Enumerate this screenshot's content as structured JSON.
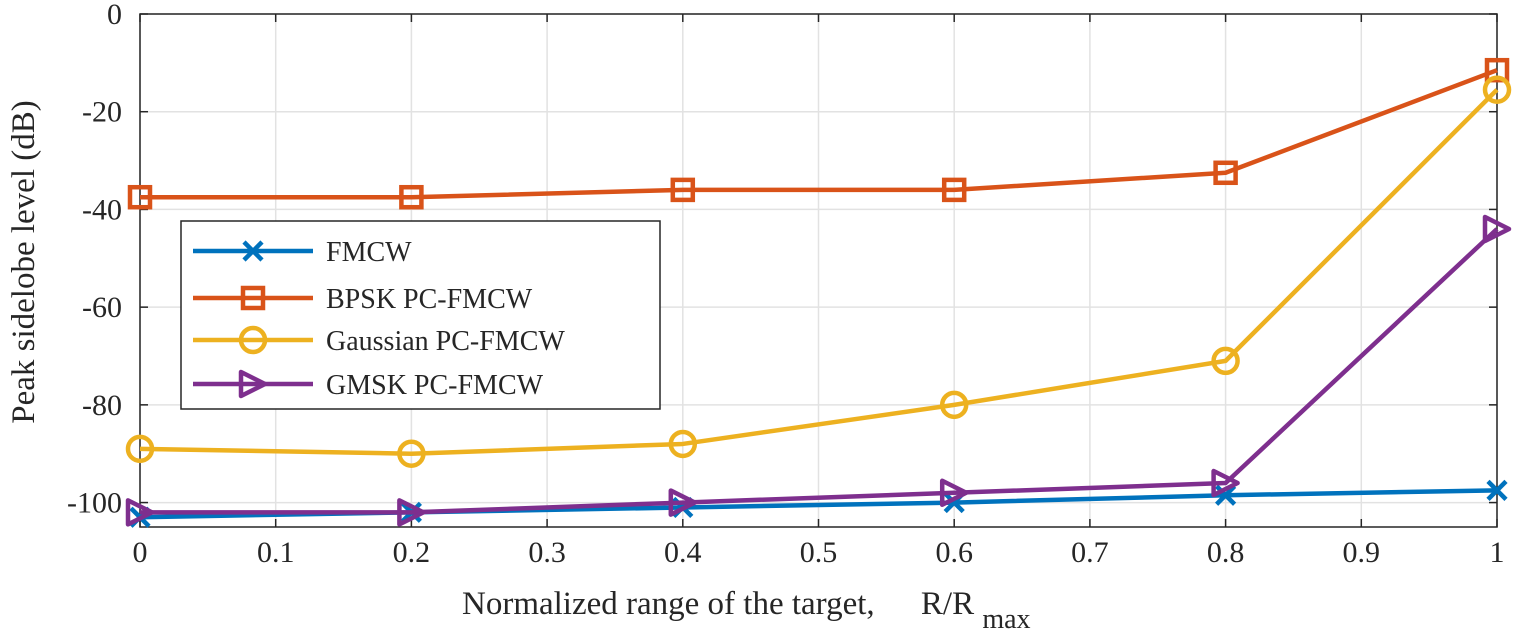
{
  "chart_data": {
    "type": "line",
    "title": "",
    "xlabel": "Normalized range of the target,",
    "xlabel_math": {
      "base": "R/R",
      "subscript": "max"
    },
    "ylabel": "Peak sidelobe level (dB)",
    "xlim": [
      0,
      1
    ],
    "ylim": [
      -105,
      0
    ],
    "x_ticks": [
      0,
      0.1,
      0.2,
      0.3,
      0.4,
      0.5,
      0.6,
      0.7,
      0.8,
      0.9,
      1
    ],
    "x_tick_labels": [
      "0",
      "0.1",
      "0.2",
      "0.3",
      "0.4",
      "0.5",
      "0.6",
      "0.7",
      "0.8",
      "0.9",
      "1"
    ],
    "y_ticks": [
      0,
      -20,
      -40,
      -60,
      -80,
      -100
    ],
    "y_tick_labels": [
      "0",
      "-20",
      "-40",
      "-60",
      "-80",
      "-100"
    ],
    "grid": true,
    "legend_position": "center-left",
    "x": [
      0,
      0.2,
      0.4,
      0.6,
      0.8,
      1
    ],
    "series": [
      {
        "name": "FMCW",
        "color": "#0072BD",
        "marker": "x",
        "values": [
          -103,
          -102,
          -101,
          -100,
          -98.5,
          -97.5
        ]
      },
      {
        "name": "BPSK PC-FMCW",
        "color": "#D95319",
        "marker": "square",
        "values": [
          -37.5,
          -37.5,
          -36,
          -36,
          -32.5,
          -11.5
        ]
      },
      {
        "name": "Gaussian PC-FMCW",
        "color": "#EDB120",
        "marker": "circle",
        "values": [
          -89,
          -90,
          -88,
          -80,
          -71,
          -15.5
        ]
      },
      {
        "name": "GMSK PC-FMCW",
        "color": "#7E2F8E",
        "marker": "triangle-right",
        "values": [
          -102,
          -102,
          -100,
          -98,
          -96,
          -44
        ]
      }
    ]
  }
}
